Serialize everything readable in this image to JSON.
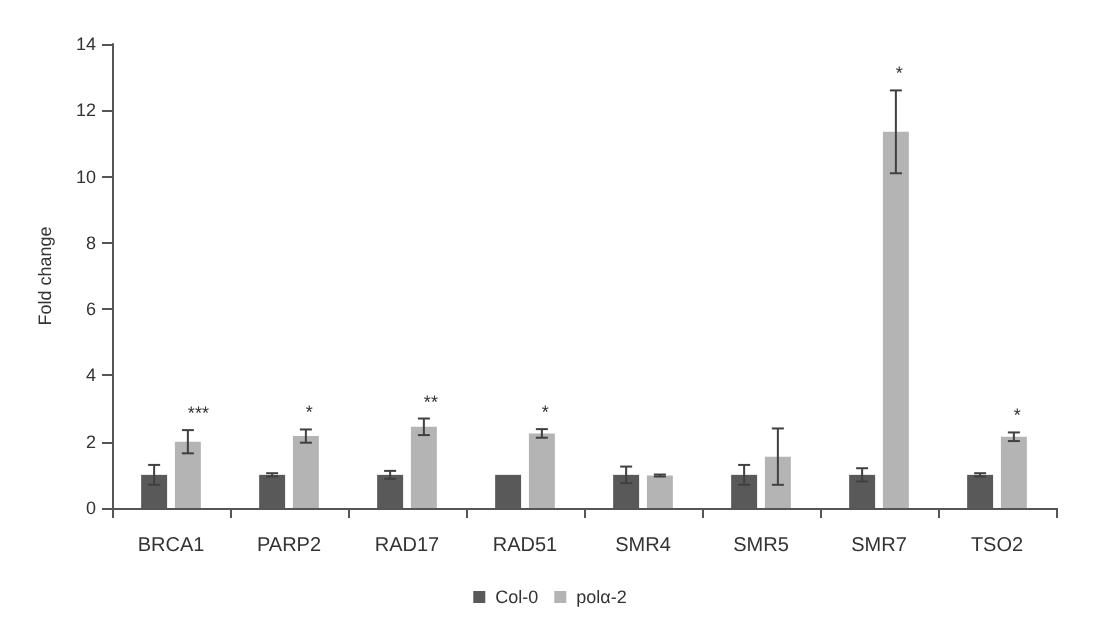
{
  "chart_data": {
    "type": "bar",
    "ylabel": "Fold change",
    "categories": [
      "BRCA1",
      "PARP2",
      "RAD17",
      "RAD51",
      "SMR4",
      "SMR5",
      "SMR7",
      "TSO2"
    ],
    "series": [
      {
        "name": "Col-0",
        "color": "#595959",
        "values": [
          1,
          1,
          1,
          1,
          1,
          1,
          1,
          1
        ],
        "errors": [
          0.3,
          0.05,
          0.12,
          0,
          0.25,
          0.3,
          0.2,
          0.05
        ]
      },
      {
        "name": "polα-2",
        "color": "#b4b4b4",
        "values": [
          2.0,
          2.17,
          2.45,
          2.25,
          0.98,
          1.55,
          11.35,
          2.15
        ],
        "errors": [
          0.35,
          0.2,
          0.25,
          0.13,
          0.03,
          0.85,
          1.25,
          0.13
        ],
        "value_labels": [
          "***",
          "*",
          "**",
          "*",
          null,
          null,
          "*",
          "*"
        ]
      }
    ],
    "ylim": [
      0,
      14
    ],
    "yticks": [
      0,
      2,
      4,
      6,
      8,
      10,
      12,
      14
    ],
    "grid": false,
    "legend": "bottom"
  }
}
